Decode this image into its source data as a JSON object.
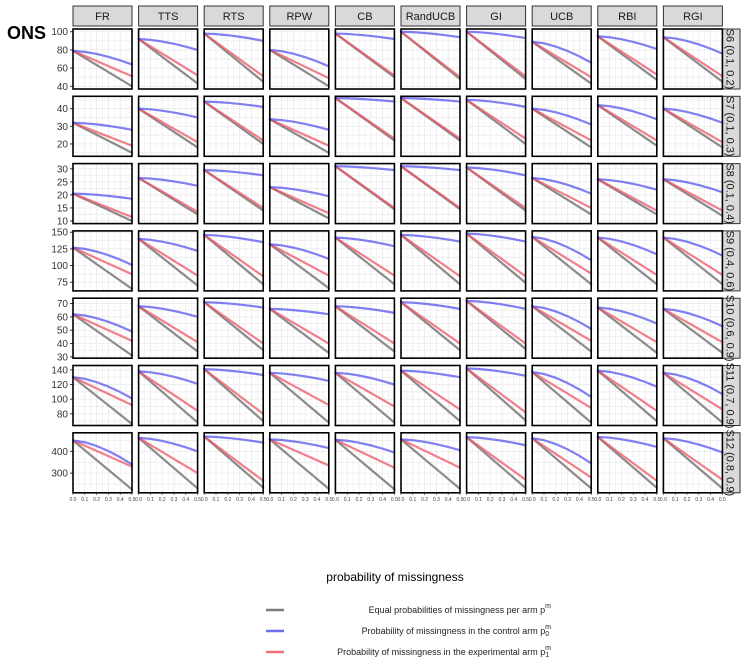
{
  "chart_data": {
    "type": "line",
    "title": "ONS",
    "xlabel": "probability of missingness",
    "columns": [
      "FR",
      "TTS",
      "RTS",
      "RPW",
      "CB",
      "RandUCB",
      "GI",
      "UCB",
      "RBI",
      "RGI"
    ],
    "x": [
      0,
      0.1,
      0.2,
      0.3,
      0.4,
      0.5
    ],
    "x_tick_labels": [
      "0.0",
      "0.1",
      "0.2",
      "0.3",
      "0.4",
      "0.5"
    ],
    "grid": true,
    "series_colors": {
      "equal": "#666666",
      "control": "#5555ee",
      "experimental": "#ee5566"
    },
    "legend": {
      "placement": "bottom",
      "entries": [
        {
          "key": "equal",
          "label": "Equal probabilities of missingness per arm p",
          "sup": "m",
          "sub": ""
        },
        {
          "key": "control",
          "label": "Probability of missingness in the control arm p",
          "sup": "m",
          "sub": "0"
        },
        {
          "key": "experimental",
          "label": "Probability of missingness in the experimental arm p",
          "sup": "m",
          "sub": "1"
        }
      ]
    },
    "rows": [
      {
        "label": "S6 (0.1, 0.2)",
        "ylim": [
          37,
          103
        ],
        "yticks": [
          40,
          60,
          80,
          100
        ],
        "panels": [
          {
            "start": 79,
            "equal": 40,
            "control": 64,
            "experimental": 51
          },
          {
            "start": 92,
            "equal": 43,
            "control": 80,
            "experimental": 52
          },
          {
            "start": 98,
            "equal": 45,
            "control": 90,
            "experimental": 51
          },
          {
            "start": 80,
            "equal": 40,
            "control": 62,
            "experimental": 49
          },
          {
            "start": 98,
            "equal": 50,
            "control": 92,
            "experimental": 52
          },
          {
            "start": 100,
            "equal": 48,
            "control": 94,
            "experimental": 50
          },
          {
            "start": 100,
            "equal": 48,
            "control": 93,
            "experimental": 51
          },
          {
            "start": 89,
            "equal": 43,
            "control": 66,
            "experimental": 50
          },
          {
            "start": 95,
            "equal": 47,
            "control": 81,
            "experimental": 53
          },
          {
            "start": 94,
            "equal": 45,
            "control": 76,
            "experimental": 51
          }
        ]
      },
      {
        "label": "S7 (0.1, 0.3)",
        "ylim": [
          13,
          47
        ],
        "yticks": [
          20,
          30,
          40
        ],
        "panels": [
          {
            "start": 32,
            "equal": 15,
            "control": 28,
            "experimental": 19
          },
          {
            "start": 40,
            "equal": 18,
            "control": 35,
            "experimental": 21
          },
          {
            "start": 44,
            "equal": 20,
            "control": 41,
            "experimental": 22
          },
          {
            "start": 34,
            "equal": 15,
            "control": 28,
            "experimental": 19
          },
          {
            "start": 46,
            "equal": 22,
            "control": 44,
            "experimental": 23
          },
          {
            "start": 46,
            "equal": 22,
            "control": 44,
            "experimental": 23
          },
          {
            "start": 45,
            "equal": 20,
            "control": 41,
            "experimental": 23
          },
          {
            "start": 40,
            "equal": 18,
            "control": 31,
            "experimental": 22
          },
          {
            "start": 42,
            "equal": 19,
            "control": 34,
            "experimental": 22
          },
          {
            "start": 40,
            "equal": 18,
            "control": 32,
            "experimental": 21
          }
        ]
      },
      {
        "label": "S8 (0.1, 0.4)",
        "ylim": [
          9,
          32
        ],
        "yticks": [
          10,
          15,
          20,
          25,
          30
        ],
        "panels": [
          {
            "start": 20.5,
            "equal": 10,
            "control": 18.5,
            "experimental": 11.5
          },
          {
            "start": 26.5,
            "equal": 12.5,
            "control": 23.5,
            "experimental": 13.5
          },
          {
            "start": 29.5,
            "equal": 14,
            "control": 27.5,
            "experimental": 15
          },
          {
            "start": 23,
            "equal": 11,
            "control": 19.5,
            "experimental": 13
          },
          {
            "start": 31,
            "equal": 14.5,
            "control": 29.5,
            "experimental": 15
          },
          {
            "start": 31,
            "equal": 14.5,
            "control": 29.5,
            "experimental": 15
          },
          {
            "start": 30.5,
            "equal": 14,
            "control": 27.5,
            "experimental": 15
          },
          {
            "start": 26.5,
            "equal": 12.5,
            "control": 20.5,
            "experimental": 15
          },
          {
            "start": 26,
            "equal": 12.5,
            "control": 22,
            "experimental": 14
          },
          {
            "start": 26,
            "equal": 12,
            "control": 21,
            "experimental": 14
          }
        ]
      },
      {
        "label": "S9 (0.4, 0.6)",
        "ylim": [
          62,
          152
        ],
        "yticks": [
          75,
          100,
          125,
          150
        ],
        "panels": [
          {
            "start": 127,
            "equal": 65,
            "control": 101,
            "experimental": 87
          },
          {
            "start": 140,
            "equal": 70,
            "control": 122,
            "experimental": 85
          },
          {
            "start": 146,
            "equal": 72,
            "control": 135,
            "experimental": 84
          },
          {
            "start": 132,
            "equal": 66,
            "control": 110,
            "experimental": 85
          },
          {
            "start": 142,
            "equal": 72,
            "control": 129,
            "experimental": 85
          },
          {
            "start": 146,
            "equal": 72,
            "control": 136,
            "experimental": 84
          },
          {
            "start": 148,
            "equal": 74,
            "control": 136,
            "experimental": 84
          },
          {
            "start": 143,
            "equal": 72,
            "control": 108,
            "experimental": 88
          },
          {
            "start": 142,
            "equal": 72,
            "control": 117,
            "experimental": 86
          },
          {
            "start": 142,
            "equal": 72,
            "control": 115,
            "experimental": 86
          }
        ]
      },
      {
        "label": "S10 (0.6, 0.9)",
        "ylim": [
          29,
          74
        ],
        "yticks": [
          30,
          40,
          50,
          60,
          70
        ],
        "panels": [
          {
            "start": 62,
            "equal": 31,
            "control": 49,
            "experimental": 42
          },
          {
            "start": 68,
            "equal": 34,
            "control": 60,
            "experimental": 41
          },
          {
            "start": 71,
            "equal": 35,
            "control": 67,
            "experimental": 40
          },
          {
            "start": 66,
            "equal": 33,
            "control": 62,
            "experimental": 40
          },
          {
            "start": 68,
            "equal": 34,
            "control": 63,
            "experimental": 40
          },
          {
            "start": 71,
            "equal": 35,
            "control": 66,
            "experimental": 40
          },
          {
            "start": 72,
            "equal": 36,
            "control": 66,
            "experimental": 40
          },
          {
            "start": 68,
            "equal": 34,
            "control": 51,
            "experimental": 42
          },
          {
            "start": 67,
            "equal": 33,
            "control": 55,
            "experimental": 41
          },
          {
            "start": 66,
            "equal": 33,
            "control": 53,
            "experimental": 41
          }
        ]
      },
      {
        "label": "S11 (0.7, 0.9)",
        "ylim": [
          64,
          146
        ],
        "yticks": [
          80,
          100,
          120,
          140
        ],
        "panels": [
          {
            "start": 130,
            "equal": 66,
            "control": 101,
            "experimental": 92
          },
          {
            "start": 138,
            "equal": 68,
            "control": 121,
            "experimental": 84
          },
          {
            "start": 141,
            "equal": 70,
            "control": 133,
            "experimental": 80
          },
          {
            "start": 136,
            "equal": 68,
            "control": 125,
            "experimental": 92
          },
          {
            "start": 136,
            "equal": 68,
            "control": 120,
            "experimental": 90
          },
          {
            "start": 139,
            "equal": 70,
            "control": 130,
            "experimental": 86
          },
          {
            "start": 142,
            "equal": 71,
            "control": 132,
            "experimental": 82
          },
          {
            "start": 137,
            "equal": 68,
            "control": 103,
            "experimental": 88
          },
          {
            "start": 139,
            "equal": 70,
            "control": 117,
            "experimental": 84
          },
          {
            "start": 136,
            "equal": 68,
            "control": 107,
            "experimental": 86
          }
        ]
      },
      {
        "label": "S12 (0.8, 0.9)",
        "ylim": [
          210,
          485
        ],
        "yticks": [
          300,
          400
        ],
        "panels": [
          {
            "start": 450,
            "equal": 225,
            "control": 340,
            "experimental": 330
          },
          {
            "start": 462,
            "equal": 230,
            "control": 400,
            "experimental": 300
          },
          {
            "start": 468,
            "equal": 234,
            "control": 440,
            "experimental": 265
          },
          {
            "start": 455,
            "equal": 228,
            "control": 415,
            "experimental": 335
          },
          {
            "start": 453,
            "equal": 226,
            "control": 395,
            "experimental": 325
          },
          {
            "start": 455,
            "equal": 228,
            "control": 405,
            "experimental": 325
          },
          {
            "start": 465,
            "equal": 232,
            "control": 428,
            "experimental": 270
          },
          {
            "start": 460,
            "equal": 230,
            "control": 345,
            "experimental": 280
          },
          {
            "start": 466,
            "equal": 233,
            "control": 420,
            "experimental": 265
          },
          {
            "start": 460,
            "equal": 230,
            "control": 395,
            "experimental": 270
          }
        ]
      }
    ]
  }
}
